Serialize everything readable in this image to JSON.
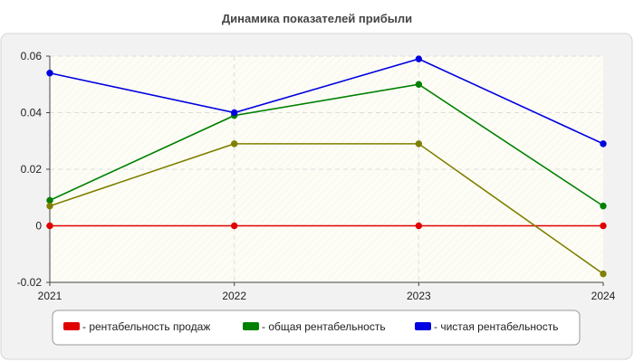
{
  "chart_data": {
    "type": "line",
    "title": "Динамика показателей прибыли",
    "xlabel": "",
    "ylabel": "",
    "categories": [
      "2021",
      "2022",
      "2023",
      "2024"
    ],
    "y_ticks": [
      "0.06",
      "0.04",
      "0.02",
      "0",
      "-0.02"
    ],
    "y_tick_values": [
      0.06,
      0.04,
      0.02,
      0,
      -0.02
    ],
    "ylim": [
      -0.02,
      0.06
    ],
    "grid": true,
    "legend_position": "bottom",
    "series": [
      {
        "name": "- рентабельность продаж",
        "color": "#e00000",
        "values": [
          0,
          0,
          0,
          0
        ],
        "legend": true
      },
      {
        "name": "- общая рентабельность",
        "color": "#008000",
        "values": [
          0.009,
          0.039,
          0.05,
          0.007
        ],
        "legend": true
      },
      {
        "name": "- чистая рентабельность",
        "color": "#0000e0",
        "values": [
          0.054,
          0.04,
          0.059,
          0.029
        ],
        "legend": true
      },
      {
        "name": "",
        "color": "#808000",
        "values": [
          0.007,
          0.029,
          0.029,
          -0.017
        ],
        "legend": false
      }
    ]
  }
}
